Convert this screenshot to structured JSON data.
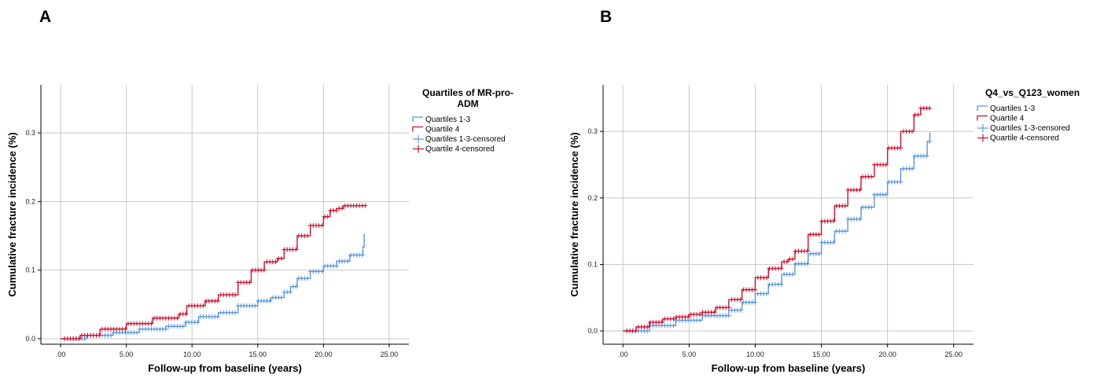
{
  "panels": [
    {
      "letter": "A"
    },
    {
      "letter": "B"
    }
  ],
  "chart_data": [
    {
      "type": "line",
      "xlabel": "Follow-up from baseline (years)",
      "ylabel": "Cumulative fracture incidence (%)",
      "xlim": [
        -1.5,
        26.5
      ],
      "ylim": [
        -0.008,
        0.37
      ],
      "x_ticks": [
        0,
        5,
        10,
        15,
        20,
        25
      ],
      "x_tick_labels": [
        ".00",
        "5.00",
        "10.00",
        "15.00",
        "20.00",
        "25.00"
      ],
      "y_ticks": [
        0,
        0.1,
        0.2,
        0.3
      ],
      "y_tick_labels": [
        "0.0",
        "0.1",
        "0.2",
        "0.3"
      ],
      "grid": true,
      "legend": {
        "title_lines": [
          "Quartiles of MR-pro-",
          "ADM"
        ],
        "placement": "right",
        "entries": [
          "Quartiles 1-3",
          "Quartile 4",
          "Quartiles 1-3-censored",
          "Quartile 4-censored"
        ]
      },
      "colors": {
        "q13": "#5b95dc",
        "q4": "#c8102e"
      },
      "series": [
        {
          "name": "Quartiles 1-3",
          "color": "#5b95dc",
          "x": [
            0,
            2,
            4,
            6,
            8,
            9.5,
            10.5,
            12,
            13.5,
            15,
            16,
            17,
            17.5,
            18,
            19,
            20,
            21,
            22,
            23,
            23.1
          ],
          "y": [
            0,
            0.005,
            0.009,
            0.014,
            0.018,
            0.024,
            0.032,
            0.038,
            0.048,
            0.055,
            0.06,
            0.068,
            0.076,
            0.088,
            0.098,
            0.106,
            0.113,
            0.122,
            0.134,
            0.153
          ]
        },
        {
          "name": "Quartile 4",
          "color": "#c8102e",
          "x": [
            0,
            1.5,
            3,
            5,
            7,
            9,
            9.6,
            11,
            12,
            13.5,
            14.5,
            15.5,
            16.5,
            17,
            18,
            19,
            20,
            20.5,
            21,
            21.5,
            23.2
          ],
          "y": [
            0,
            0.005,
            0.014,
            0.022,
            0.03,
            0.036,
            0.048,
            0.055,
            0.064,
            0.082,
            0.1,
            0.112,
            0.117,
            0.13,
            0.15,
            0.165,
            0.178,
            0.187,
            0.19,
            0.194,
            0.194
          ]
        }
      ]
    },
    {
      "type": "line",
      "xlabel": "Follow-up from baseline (years)",
      "ylabel": "Cumulative fracture incidence (%)",
      "xlim": [
        -1.5,
        26.5
      ],
      "ylim": [
        -0.02,
        0.37
      ],
      "x_ticks": [
        0,
        5,
        10,
        15,
        20,
        25
      ],
      "x_tick_labels": [
        ".00",
        "5.00",
        "10.00",
        "15.00",
        "20.00",
        "25.00"
      ],
      "y_ticks": [
        0,
        0.1,
        0.2,
        0.3
      ],
      "y_tick_labels": [
        "0.0",
        "0.1",
        "0.2",
        "0.3"
      ],
      "grid": true,
      "legend": {
        "title_lines": [
          "Q4_vs_Q123_women"
        ],
        "placement": "right",
        "entries": [
          "Quartiles 1-3",
          "Quartile 4",
          "Quartiles 1-3-censored",
          "Quartile 4-censored"
        ]
      },
      "colors": {
        "q13": "#5b95dc",
        "q4": "#c8102e"
      },
      "series": [
        {
          "name": "Quartiles 1-3",
          "color": "#5b95dc",
          "x": [
            0,
            2,
            4,
            6,
            8,
            9,
            10,
            11,
            12,
            13,
            14,
            15,
            16,
            17,
            18,
            19,
            20,
            21,
            22,
            23,
            23.2
          ],
          "y": [
            0,
            0.008,
            0.016,
            0.023,
            0.031,
            0.043,
            0.056,
            0.07,
            0.085,
            0.101,
            0.116,
            0.133,
            0.15,
            0.168,
            0.186,
            0.205,
            0.224,
            0.244,
            0.263,
            0.285,
            0.298
          ]
        },
        {
          "name": "Quartile 4",
          "color": "#c8102e",
          "x": [
            0,
            1,
            2,
            3,
            4,
            5,
            6,
            7,
            8,
            9,
            10,
            11,
            12,
            12.5,
            13,
            14,
            15,
            16,
            17,
            18,
            19,
            20,
            21,
            22,
            22.5,
            23.2
          ],
          "y": [
            0,
            0.006,
            0.013,
            0.018,
            0.021,
            0.025,
            0.028,
            0.035,
            0.047,
            0.062,
            0.08,
            0.094,
            0.104,
            0.108,
            0.12,
            0.145,
            0.165,
            0.188,
            0.212,
            0.232,
            0.25,
            0.275,
            0.3,
            0.325,
            0.335,
            0.335
          ]
        }
      ]
    }
  ]
}
